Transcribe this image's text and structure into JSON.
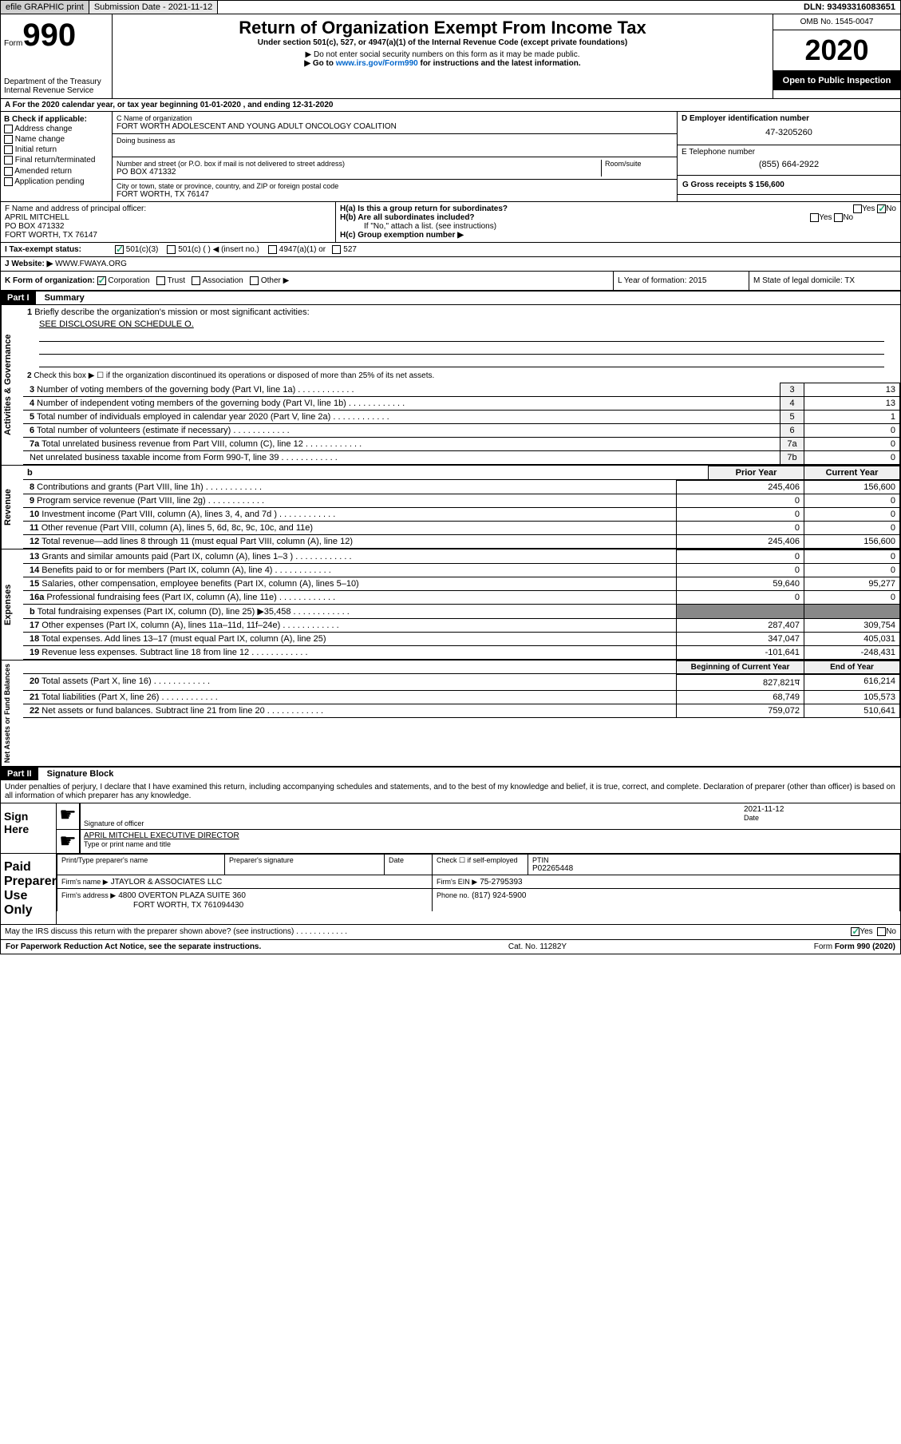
{
  "header": {
    "efile": "efile GRAPHIC print",
    "submission_label": "Submission Date - 2021-11-12",
    "dln_label": "DLN: 93493316083651"
  },
  "form": {
    "form_label": "Form",
    "form_number": "990",
    "dept": "Department of the Treasury\nInternal Revenue Service",
    "main_title": "Return of Organization Exempt From Income Tax",
    "subtitle": "Under section 501(c), 527, or 4947(a)(1) of the Internal Revenue Code (except private foundations)",
    "note1": "▶ Do not enter social security numbers on this form as it may be made public.",
    "note2_pre": "▶ Go to ",
    "note2_link": "www.irs.gov/Form990",
    "note2_post": " for instructions and the latest information.",
    "omb": "OMB No. 1545-0047",
    "year": "2020",
    "inspection": "Open to Public Inspection"
  },
  "line_a": "For the 2020 calendar year, or tax year beginning 01-01-2020   , and ending 12-31-2020",
  "box_b": {
    "label": "B Check if applicable:",
    "items": [
      "Address change",
      "Name change",
      "Initial return",
      "Final return/terminated",
      "Amended return",
      "Application pending"
    ]
  },
  "box_c": {
    "label": "C Name of organization",
    "name": "FORT WORTH ADOLESCENT AND YOUNG ADULT ONCOLOGY COALITION",
    "dba_label": "Doing business as",
    "addr_label": "Number and street (or P.O. box if mail is not delivered to street address)",
    "room_label": "Room/suite",
    "addr": "PO BOX 471332",
    "city_label": "City or town, state or province, country, and ZIP or foreign postal code",
    "city": "FORT WORTH, TX  76147"
  },
  "box_d": {
    "label": "D Employer identification number",
    "value": "47-3205260"
  },
  "box_e": {
    "label": "E Telephone number",
    "value": "(855) 664-2922"
  },
  "box_g": {
    "label": "G Gross receipts $ 156,600"
  },
  "box_f": {
    "label": "F Name and address of principal officer:",
    "name": "APRIL MITCHELL",
    "addr1": "PO BOX 471332",
    "addr2": "FORT WORTH, TX  76147"
  },
  "box_h": {
    "ha_label": "H(a)  Is this a group return for subordinates?",
    "hb_label": "H(b)  Are all subordinates included?",
    "hb_note": "If \"No,\" attach a list. (see instructions)",
    "hc_label": "H(c)  Group exemption number ▶"
  },
  "box_i": {
    "label": "I  Tax-exempt status:",
    "opt1": "501(c)(3)",
    "opt2": "501(c) (  ) ◀ (insert no.)",
    "opt3": "4947(a)(1) or",
    "opt4": "527"
  },
  "box_j": {
    "label": "J  Website: ▶",
    "value": "WWW.FWAYA.ORG"
  },
  "box_k": {
    "label": "K Form of organization:",
    "o1": "Corporation",
    "o2": "Trust",
    "o3": "Association",
    "o4": "Other ▶"
  },
  "box_l": {
    "label": "L Year of formation: 2015"
  },
  "box_m": {
    "label": "M State of legal domicile: TX"
  },
  "part1": {
    "header": "Part I",
    "title": "Summary",
    "q1": "Briefly describe the organization's mission or most significant activities:",
    "q1_ans": "SEE DISCLOSURE ON SCHEDULE O.",
    "q2": "Check this box ▶ ☐ if the organization discontinued its operations or disposed of more than 25% of its net assets.",
    "rows_top": [
      {
        "n": "3",
        "label": "Number of voting members of the governing body (Part VI, line 1a)",
        "r": "3",
        "v": "13"
      },
      {
        "n": "4",
        "label": "Number of independent voting members of the governing body (Part VI, line 1b)",
        "r": "4",
        "v": "13"
      },
      {
        "n": "5",
        "label": "Total number of individuals employed in calendar year 2020 (Part V, line 2a)",
        "r": "5",
        "v": "1"
      },
      {
        "n": "6",
        "label": "Total number of volunteers (estimate if necessary)",
        "r": "6",
        "v": "0"
      },
      {
        "n": "7a",
        "label": "Total unrelated business revenue from Part VIII, column (C), line 12",
        "r": "7a",
        "v": "0"
      },
      {
        "n": "",
        "label": "Net unrelated business taxable income from Form 990-T, line 39",
        "r": "7b",
        "v": "0"
      }
    ],
    "col_hdr": {
      "prior": "Prior Year",
      "current": "Current Year"
    },
    "revenue": [
      {
        "n": "8",
        "label": "Contributions and grants (Part VIII, line 1h)",
        "p": "245,406",
        "c": "156,600"
      },
      {
        "n": "9",
        "label": "Program service revenue (Part VIII, line 2g)",
        "p": "0",
        "c": "0"
      },
      {
        "n": "10",
        "label": "Investment income (Part VIII, column (A), lines 3, 4, and 7d )",
        "p": "0",
        "c": "0"
      },
      {
        "n": "11",
        "label": "Other revenue (Part VIII, column (A), lines 5, 6d, 8c, 9c, 10c, and 11e)",
        "p": "0",
        "c": "0"
      },
      {
        "n": "12",
        "label": "Total revenue—add lines 8 through 11 (must equal Part VIII, column (A), line 12)",
        "p": "245,406",
        "c": "156,600"
      }
    ],
    "expenses": [
      {
        "n": "13",
        "label": "Grants and similar amounts paid (Part IX, column (A), lines 1–3 )",
        "p": "0",
        "c": "0"
      },
      {
        "n": "14",
        "label": "Benefits paid to or for members (Part IX, column (A), line 4)",
        "p": "0",
        "c": "0"
      },
      {
        "n": "15",
        "label": "Salaries, other compensation, employee benefits (Part IX, column (A), lines 5–10)",
        "p": "59,640",
        "c": "95,277"
      },
      {
        "n": "16a",
        "label": "Professional fundraising fees (Part IX, column (A), line 11e)",
        "p": "0",
        "c": "0"
      },
      {
        "n": "b",
        "label": "Total fundraising expenses (Part IX, column (D), line 25) ▶35,458",
        "p": "",
        "c": ""
      },
      {
        "n": "17",
        "label": "Other expenses (Part IX, column (A), lines 11a–11d, 11f–24e)",
        "p": "287,407",
        "c": "309,754"
      },
      {
        "n": "18",
        "label": "Total expenses. Add lines 13–17 (must equal Part IX, column (A), line 25)",
        "p": "347,047",
        "c": "405,031"
      },
      {
        "n": "19",
        "label": "Revenue less expenses. Subtract line 18 from line 12",
        "p": "-101,641",
        "c": "-248,431"
      }
    ],
    "col_hdr2": {
      "prior": "Beginning of Current Year",
      "current": "End of Year"
    },
    "net": [
      {
        "n": "20",
        "label": "Total assets (Part X, line 16)",
        "p": "827,821प",
        "Ι": "",
        "c": "616,214"
      },
      {
        "n": "21",
        "label": "Total liabilities (Part X, line 26)",
        "p": "68,749",
        "c": "105,573"
      },
      {
        "n": "22",
        "label": "Net assets or fund balances. Subtract line 21 from line 20",
        "p": "759,072",
        "c": "510,641"
      }
    ],
    "vlabels": {
      "gov": "Activities & Governance",
      "rev": "Revenue",
      "exp": "Expenses",
      "net": "Net Assets or Fund Balances"
    }
  },
  "part2": {
    "header": "Part II",
    "title": "Signature Block",
    "decl": "Under penalties of perjury, I declare that I have examined this return, including accompanying schedules and statements, and to the best of my knowledge and belief, it is true, correct, and complete. Declaration of preparer (other than officer) is based on all information of which preparer has any knowledge.",
    "sign_here": "Sign Here",
    "sig_officer": "Signature of officer",
    "date_label": "Date",
    "date_val": "2021-11-12",
    "officer_name": "APRIL MITCHELL  EXECUTIVE DIRECTOR",
    "type_name": "Type or print name and title",
    "paid_prep": "Paid Preparer Use Only",
    "pp_name_label": "Print/Type preparer's name",
    "pp_sig_label": "Preparer's signature",
    "pp_date_label": "Date",
    "pp_check": "Check ☐ if self-employed",
    "ptin_label": "PTIN",
    "ptin": "P02265448",
    "firm_name_label": "Firm's name    ▶",
    "firm_name": "JTAYLOR & ASSOCIATES LLC",
    "firm_ein_label": "Firm's EIN ▶",
    "firm_ein": "75-2795393",
    "firm_addr_label": "Firm's address ▶",
    "firm_addr1": "4800 OVERTON PLAZA SUITE 360",
    "firm_addr2": "FORT WORTH, TX  761094430",
    "phone_label": "Phone no.",
    "phone": "(817) 924-5900",
    "discuss": "May the IRS discuss this return with the preparer shown above? (see instructions)"
  },
  "footer": {
    "left": "For Paperwork Reduction Act Notice, see the separate instructions.",
    "mid": "Cat. No. 11282Y",
    "right": "Form 990 (2020)"
  }
}
